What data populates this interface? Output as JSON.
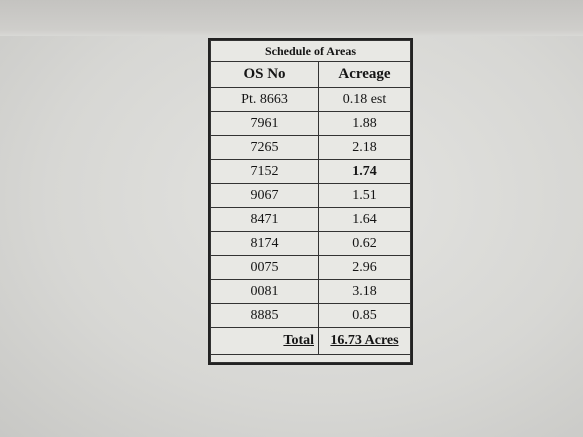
{
  "table": {
    "title": "Schedule of Areas",
    "headers": [
      "OS No",
      "Acreage"
    ],
    "rows": [
      [
        "Pt. 8663",
        "0.18 est"
      ],
      [
        "7961",
        "1.88"
      ],
      [
        "7265",
        "2.18"
      ],
      [
        "7152",
        "1.74"
      ],
      [
        "9067",
        "1.51"
      ],
      [
        "8471",
        "1.64"
      ],
      [
        "8174",
        "0.62"
      ],
      [
        "0075",
        "2.96"
      ],
      [
        "0081",
        "3.18"
      ],
      [
        "8885",
        "0.85"
      ]
    ],
    "total": [
      "Total",
      "16.73 Acres"
    ]
  }
}
